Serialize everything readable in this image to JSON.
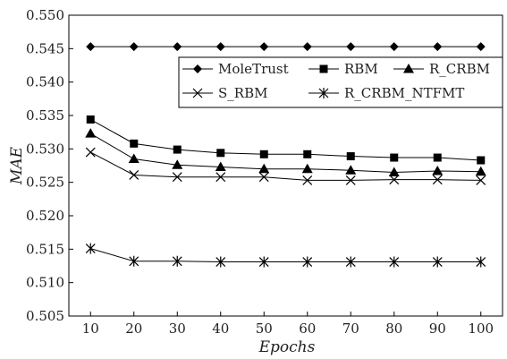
{
  "chart_data": {
    "type": "line",
    "title": "",
    "xlabel": "Epochs",
    "ylabel": "MAE",
    "x": [
      10,
      20,
      30,
      40,
      50,
      60,
      70,
      80,
      90,
      100
    ],
    "xlim": [
      5,
      105
    ],
    "ylim": [
      0.505,
      0.55
    ],
    "yticks": [
      "0.505",
      "0.510",
      "0.515",
      "0.520",
      "0.525",
      "0.530",
      "0.535",
      "0.540",
      "0.545",
      "0.550"
    ],
    "xticks": [
      "10",
      "20",
      "30",
      "40",
      "50",
      "60",
      "70",
      "80",
      "90",
      "100"
    ],
    "grid": false,
    "legend_position": "top-right",
    "series": [
      {
        "name": "MoleTrust",
        "marker": "diamond",
        "values": [
          0.5453,
          0.5453,
          0.5453,
          0.5453,
          0.5453,
          0.5453,
          0.5453,
          0.5453,
          0.5453,
          0.5453
        ]
      },
      {
        "name": "RBM",
        "marker": "square",
        "values": [
          0.5344,
          0.5308,
          0.5299,
          0.5294,
          0.5292,
          0.5292,
          0.5289,
          0.5287,
          0.5287,
          0.5283
        ]
      },
      {
        "name": "R_CRBM",
        "marker": "triangle",
        "values": [
          0.5323,
          0.5285,
          0.5276,
          0.5273,
          0.527,
          0.527,
          0.5268,
          0.5265,
          0.5267,
          0.5266
        ]
      },
      {
        "name": "S_RBM",
        "marker": "x",
        "values": [
          0.5295,
          0.5261,
          0.5258,
          0.5258,
          0.5258,
          0.5253,
          0.5253,
          0.5254,
          0.5254,
          0.5253
        ]
      },
      {
        "name": "R_CRBM_NTFMT",
        "marker": "asterisk",
        "values": [
          0.5151,
          0.5132,
          0.5132,
          0.5131,
          0.5131,
          0.5131,
          0.5131,
          0.5131,
          0.5131,
          0.5131
        ]
      }
    ],
    "color": "#000000"
  }
}
